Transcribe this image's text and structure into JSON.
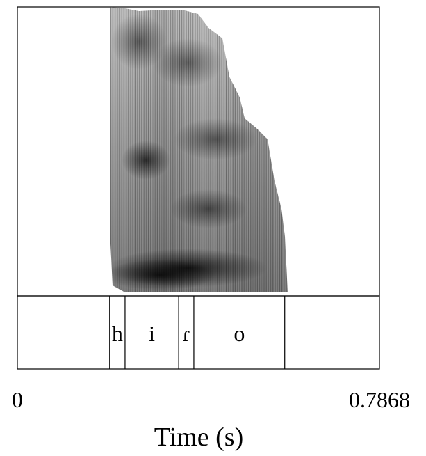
{
  "tier": {
    "segments": [
      {
        "label": "",
        "start": 0.0,
        "end": 0.2005
      },
      {
        "label": "h",
        "start": 0.2005,
        "end": 0.234
      },
      {
        "label": "i",
        "start": 0.234,
        "end": 0.3505
      },
      {
        "label": "ɾ",
        "start": 0.3505,
        "end": 0.3835
      },
      {
        "label": "o",
        "start": 0.3835,
        "end": 0.581
      },
      {
        "label": "",
        "start": 0.581,
        "end": 0.7868
      }
    ]
  },
  "axis": {
    "min_label": "0",
    "max_label": "0.7868",
    "title": "Time (s)",
    "range": [
      0,
      0.7868
    ]
  },
  "colors": {
    "ink": "#000000",
    "background": "#ffffff"
  }
}
